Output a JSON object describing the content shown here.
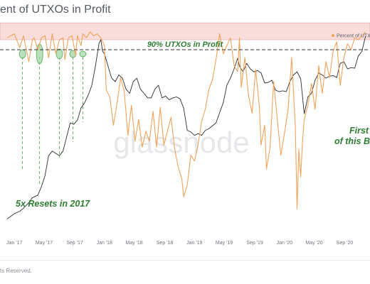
{
  "header": {
    "title": "ent of UTXOs in Profit"
  },
  "footer": {
    "text": "ts Reserved."
  },
  "chart_data": {
    "type": "line",
    "title": "ent of UTXOs in Profit",
    "watermark": "glassnode",
    "legend": {
      "placement": "top-right",
      "entries": [
        "Percent of UTXOs"
      ]
    },
    "x_ticks": [
      "Jan '17",
      "May '17",
      "Sep '17",
      "Jan '18",
      "May '18",
      "Sep '18",
      "Jan '19",
      "May '19",
      "Sep '19",
      "Jan '20",
      "May '20",
      "Sep '20"
    ],
    "series": [
      {
        "name": "Percent of UTXOs",
        "color": "#f2a35a",
        "axis": "left",
        "x": [
          2016.92,
          2017.0,
          2017.06,
          2017.1,
          2017.16,
          2017.2,
          2017.22,
          2017.26,
          2017.3,
          2017.34,
          2017.38,
          2017.42,
          2017.46,
          2017.5,
          2017.54,
          2017.56,
          2017.6,
          2017.64,
          2017.68,
          2017.7,
          2017.74,
          2017.76,
          2017.8,
          2017.84,
          2017.88,
          2017.92,
          2017.96,
          2018.0,
          2018.02,
          2018.06,
          2018.1,
          2018.14,
          2018.18,
          2018.22,
          2018.26,
          2018.3,
          2018.34,
          2018.38,
          2018.42,
          2018.46,
          2018.5,
          2018.54,
          2018.58,
          2018.62,
          2018.66,
          2018.7,
          2018.74,
          2018.78,
          2018.82,
          2018.86,
          2018.88,
          2018.92,
          2018.96,
          2019.0,
          2019.04,
          2019.08,
          2019.12,
          2019.16,
          2019.2,
          2019.24,
          2019.28,
          2019.32,
          2019.36,
          2019.4,
          2019.44,
          2019.48,
          2019.5,
          2019.52,
          2019.56,
          2019.6,
          2019.64,
          2019.68,
          2019.72,
          2019.74,
          2019.78,
          2019.8,
          2019.84,
          2019.88,
          2019.92,
          2019.96,
          2020.0,
          2020.04,
          2020.08,
          2020.12,
          2020.14,
          2020.16,
          2020.18,
          2020.2,
          2020.22,
          2020.26,
          2020.3,
          2020.34,
          2020.38,
          2020.42,
          2020.46,
          2020.5,
          2020.54,
          2020.58,
          2020.62,
          2020.66,
          2020.7,
          2020.74,
          2020.78,
          2020.82,
          2020.86,
          2020.9
        ],
        "y": [
          96,
          98,
          91,
          97,
          84,
          95,
          96,
          90,
          96,
          97,
          86,
          98,
          88,
          95,
          96,
          85,
          96,
          97,
          87,
          97,
          92,
          98,
          96,
          99,
          97,
          98,
          96,
          92,
          70,
          66,
          52,
          63,
          76,
          69,
          47,
          62,
          44,
          55,
          41,
          49,
          44,
          59,
          41,
          61,
          42,
          49,
          56,
          40,
          31,
          25,
          16,
          22,
          37,
          34,
          42,
          54,
          60,
          70,
          75,
          85,
          98,
          88,
          92,
          96,
          82,
          79,
          96,
          71,
          86,
          67,
          58,
          80,
          62,
          42,
          52,
          30,
          41,
          74,
          55,
          37,
          48,
          60,
          86,
          52,
          10,
          40,
          26,
          44,
          55,
          62,
          73,
          60,
          82,
          68,
          84,
          76,
          89,
          94,
          72,
          86,
          93,
          90,
          96,
          95,
          97,
          99
        ]
      },
      {
        "name": "",
        "color": "#2d2d2d",
        "axis": "right",
        "x": [
          2016.92,
          2017.0,
          2017.06,
          2017.1,
          2017.16,
          2017.2,
          2017.26,
          2017.3,
          2017.34,
          2017.38,
          2017.42,
          2017.46,
          2017.5,
          2017.54,
          2017.58,
          2017.62,
          2017.66,
          2017.7,
          2017.74,
          2017.78,
          2017.82,
          2017.86,
          2017.9,
          2017.94,
          2017.96,
          2017.98,
          2018.0,
          2018.04,
          2018.08,
          2018.12,
          2018.16,
          2018.2,
          2018.24,
          2018.28,
          2018.32,
          2018.36,
          2018.4,
          2018.44,
          2018.48,
          2018.52,
          2018.56,
          2018.6,
          2018.64,
          2018.68,
          2018.72,
          2018.76,
          2018.8,
          2018.84,
          2018.88,
          2018.92,
          2018.96,
          2019.0,
          2019.04,
          2019.08,
          2019.12,
          2019.16,
          2019.2,
          2019.24,
          2019.28,
          2019.32,
          2019.36,
          2019.4,
          2019.44,
          2019.48,
          2019.5,
          2019.54,
          2019.58,
          2019.62,
          2019.66,
          2019.7,
          2019.74,
          2019.78,
          2019.82,
          2019.86,
          2019.9,
          2019.94,
          2019.98,
          2020.02,
          2020.06,
          2020.1,
          2020.14,
          2020.18,
          2020.22,
          2020.26,
          2020.3,
          2020.34,
          2020.38,
          2020.42,
          2020.46,
          2020.5,
          2020.54,
          2020.58,
          2020.62,
          2020.66,
          2020.7,
          2020.74,
          2020.78,
          2020.82,
          2020.86,
          2020.9
        ],
        "y": [
          880,
          960,
          1000,
          1050,
          1150,
          1250,
          1300,
          1500,
          1800,
          2500,
          2700,
          2600,
          2500,
          2700,
          3400,
          4300,
          4200,
          4500,
          5500,
          6000,
          6800,
          8000,
          11000,
          16000,
          17000,
          14000,
          13500,
          11000,
          9000,
          8500,
          9500,
          9000,
          7500,
          7000,
          8500,
          9000,
          7500,
          7000,
          6500,
          6500,
          7500,
          8000,
          6500,
          6700,
          6300,
          6500,
          6600,
          6400,
          5500,
          3800,
          3700,
          3500,
          3600,
          3500,
          3800,
          3900,
          4100,
          4300,
          5100,
          6000,
          8000,
          9000,
          10500,
          12500,
          11000,
          10000,
          11500,
          10500,
          10000,
          10200,
          9800,
          8300,
          8400,
          8700,
          7400,
          7200,
          7300,
          7200,
          8500,
          9500,
          10000,
          8900,
          5000,
          6600,
          7000,
          8700,
          9800,
          9500,
          9000,
          9300,
          9400,
          9100,
          11500,
          11800,
          10500,
          10700,
          10600,
          13000,
          14000,
          18000
        ]
      }
    ],
    "axes": {
      "x_range": [
        2016.84,
        2020.95
      ],
      "y_left_range": [
        0,
        100
      ],
      "y_right_log_range": [
        750,
        20000
      ],
      "y_right_scale": "log"
    },
    "reference_line": {
      "value": 90,
      "label": "90% UTXOs in Profit",
      "style": "dashed"
    },
    "shaded_band": {
      "from": 95,
      "to": 100,
      "color": "#f4c7c3"
    },
    "reset_markers": {
      "x": [
        2017.09,
        2017.28,
        2017.5,
        2017.65,
        2017.76
      ]
    },
    "annotations": [
      {
        "text": "5x Resets in 2017",
        "color": "#2e7d32"
      },
      {
        "text": "First",
        "color": "#2e7d32"
      },
      {
        "text": "of this B",
        "color": "#2e7d32"
      }
    ]
  }
}
